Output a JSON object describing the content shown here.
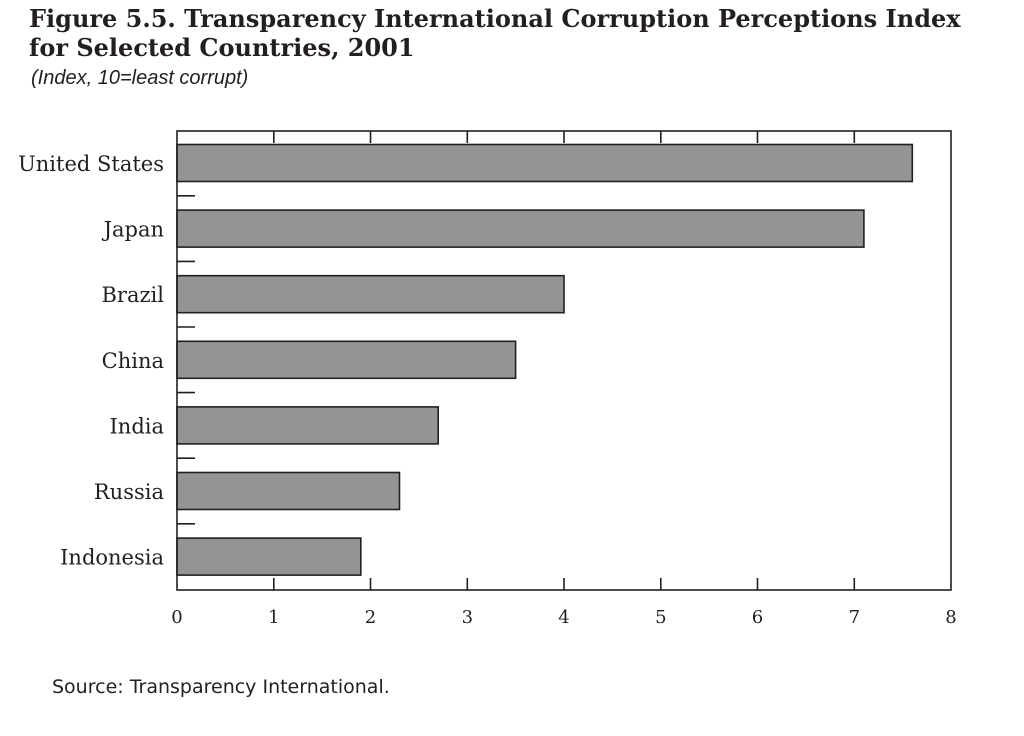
{
  "figure": {
    "title_line1": "Figure 5.5.  Transparency International Corruption Perceptions Index",
    "title_line2": "for Selected Countries, 2001",
    "subtitle": "(Index, 10=least corrupt)",
    "source": "Source: Transparency International."
  },
  "colors": {
    "bar_fill": "#949494",
    "bar_stroke": "#231f20",
    "axis": "#231f20",
    "text": "#231f20"
  },
  "chart_data": {
    "type": "bar",
    "orientation": "horizontal",
    "title": "Transparency International Corruption Perceptions Index for Selected Countries, 2001",
    "subtitle": "(Index, 10=least corrupt)",
    "categories": [
      "United States",
      "Japan",
      "Brazil",
      "China",
      "India",
      "Russia",
      "Indonesia"
    ],
    "values": [
      7.6,
      7.1,
      4.0,
      3.5,
      2.7,
      2.3,
      1.9
    ],
    "xlim": [
      0,
      8
    ],
    "xticks": [
      0,
      1,
      2,
      3,
      4,
      5,
      6,
      7,
      8
    ],
    "xticklabels": [
      "0",
      "1",
      "2",
      "3",
      "4",
      "5",
      "6",
      "7",
      "8"
    ],
    "xlabel": "",
    "ylabel": "",
    "grid": false,
    "legend": "none"
  }
}
